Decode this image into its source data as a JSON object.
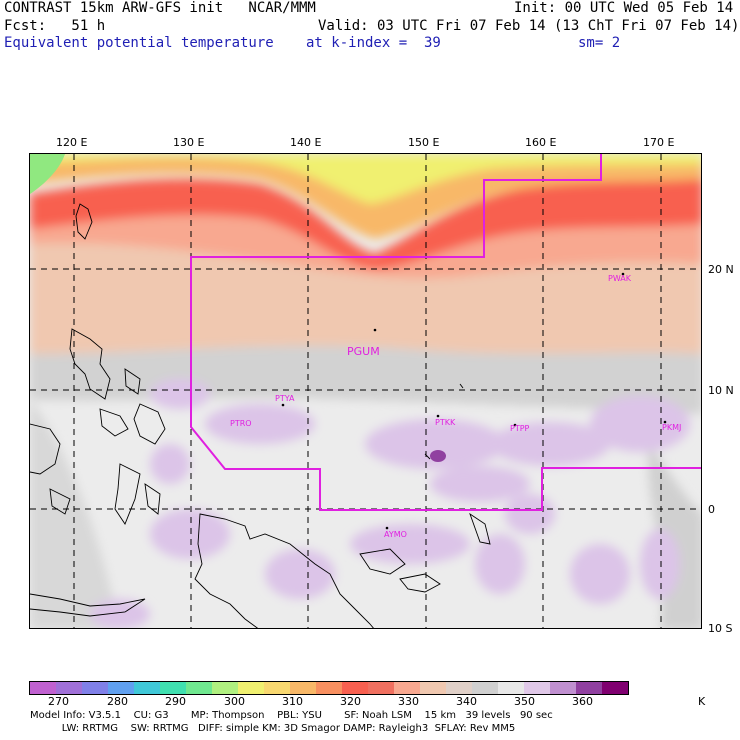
{
  "header": {
    "line1_left": "CONTRAST 15km ARW-GFS init   NCAR/MMM",
    "line1_right": "Init: 00 UTC Wed 05 Feb 14",
    "line2_left": "Fcst:   51 h",
    "line2_right": "Valid: 03 UTC Fri 07 Feb 14 (13 ChT Fri 07 Feb 14)",
    "line3_left": "Equivalent potential temperature",
    "line3_mid": "at k-index =  39",
    "line3_right": "sm= 2"
  },
  "axes": {
    "lon_labels": [
      "120 E",
      "130 E",
      "140 E",
      "150 E",
      "160 E",
      "170 E"
    ],
    "lat_labels": [
      "20 N",
      "10 N",
      "0",
      "10 S"
    ]
  },
  "stations": [
    "PGUM",
    "PTYA",
    "PTRO",
    "PTKK",
    "PTPP",
    "PKMJ",
    "PWAK",
    "AYMO"
  ],
  "colorbar": {
    "labels": [
      "270",
      "280",
      "290",
      "300",
      "310",
      "320",
      "330",
      "340",
      "350",
      "360"
    ],
    "unit": "K",
    "colors": [
      "#c061d0",
      "#a070d8",
      "#8080e8",
      "#60a0f0",
      "#40c8d8",
      "#40e0b0",
      "#70e890",
      "#b0f080",
      "#f0f070",
      "#f8d870",
      "#f8b868",
      "#f89060",
      "#f86050",
      "#f07060",
      "#f8a890",
      "#f0c8b0",
      "#e0d0c8",
      "#d0d0d0",
      "#e8e8e8",
      "#e0c8e8",
      "#c090d0",
      "#9040a0",
      "#800070"
    ]
  },
  "footer": {
    "line1": "Model Info: V3.5.1    CU: G3       MP: Thompson    PBL: YSU       SF: Noah LSM    15 km   39 levels   90 sec",
    "line2": "          LW: RRTMG    SW: RRTMG   DIFF: simple KM: 3D Smagor DAMP: Rayleigh3  SFLAY: Rev MM5"
  }
}
